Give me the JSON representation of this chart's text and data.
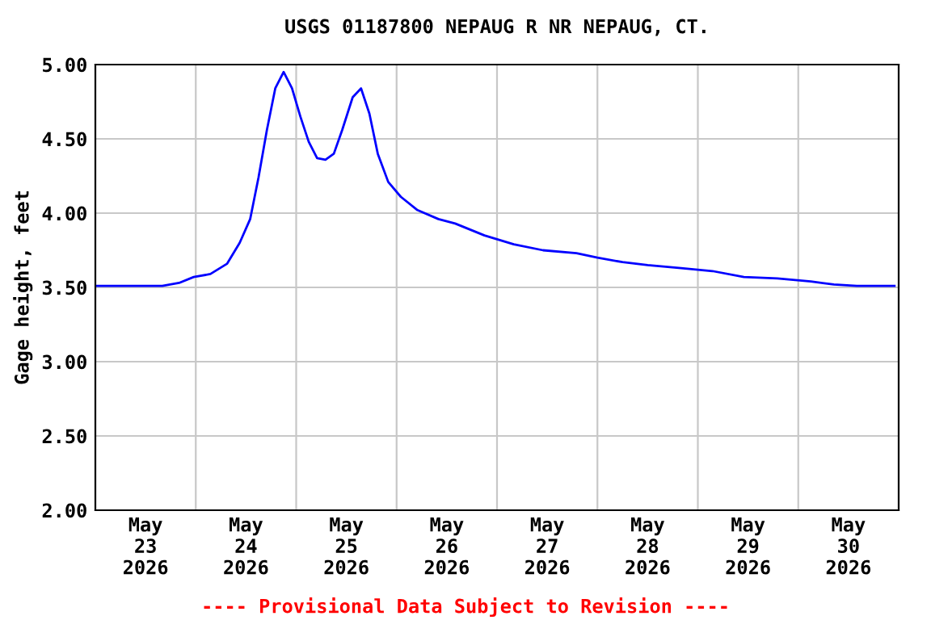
{
  "chart_data": {
    "type": "line",
    "title": "USGS 01187800 NEPAUG R NR NEPAUG, CT.",
    "ylabel": "Gage height, feet",
    "annotations": [
      "---- Provisional Data Subject to Revision ----"
    ],
    "x": [
      "2026-05-23T00:00",
      "2026-05-23T16:00",
      "2026-05-23T20:00",
      "2026-05-23T23:30",
      "2026-05-24T03:30",
      "2026-05-24T07:30",
      "2026-05-24T10:30",
      "2026-05-24T13:00",
      "2026-05-24T15:00",
      "2026-05-24T17:00",
      "2026-05-24T19:00",
      "2026-05-24T21:00",
      "2026-05-24T23:00",
      "2026-05-25T01:00",
      "2026-05-25T03:00",
      "2026-05-25T05:00",
      "2026-05-25T07:00",
      "2026-05-25T09:00",
      "2026-05-25T11:00",
      "2026-05-25T13:30",
      "2026-05-25T15:30",
      "2026-05-25T17:30",
      "2026-05-25T19:30",
      "2026-05-25T22:00",
      "2026-05-26T01:00",
      "2026-05-26T05:00",
      "2026-05-26T10:00",
      "2026-05-26T14:00",
      "2026-05-26T21:00",
      "2026-05-27T04:00",
      "2026-05-27T11:00",
      "2026-05-27T19:00",
      "2026-05-28T00:00",
      "2026-05-28T06:00",
      "2026-05-28T12:00",
      "2026-05-28T20:00",
      "2026-05-29T03:30",
      "2026-05-29T11:00",
      "2026-05-29T19:00",
      "2026-05-30T03:00",
      "2026-05-30T08:30",
      "2026-05-30T14:00",
      "2026-05-30T23:00"
    ],
    "series": [
      {
        "color": "#0000ff",
        "values": [
          3.51,
          3.51,
          3.53,
          3.57,
          3.59,
          3.66,
          3.8,
          3.96,
          4.24,
          4.56,
          4.84,
          4.95,
          4.84,
          4.65,
          4.48,
          4.37,
          4.36,
          4.4,
          4.56,
          4.78,
          4.84,
          4.67,
          4.4,
          4.21,
          4.11,
          4.02,
          3.96,
          3.93,
          3.85,
          3.79,
          3.75,
          3.73,
          3.7,
          3.67,
          3.65,
          3.63,
          3.61,
          3.57,
          3.56,
          3.54,
          3.52,
          3.51,
          3.51
        ]
      }
    ],
    "xlim": [
      "2026-05-23T00:00",
      "2026-05-31T00:00"
    ],
    "xticks": [
      {
        "value": "2026-05-23T12:00",
        "label": "May\n23\n2026"
      },
      {
        "value": "2026-05-24T00:00",
        "label": null
      },
      {
        "value": "2026-05-24T12:00",
        "label": "May\n24\n2026"
      },
      {
        "value": "2026-05-25T00:00",
        "label": null
      },
      {
        "value": "2026-05-25T12:00",
        "label": "May\n25\n2026"
      },
      {
        "value": "2026-05-26T00:00",
        "label": null
      },
      {
        "value": "2026-05-26T12:00",
        "label": "May\n26\n2026"
      },
      {
        "value": "2026-05-27T00:00",
        "label": null
      },
      {
        "value": "2026-05-27T12:00",
        "label": "May\n27\n2026"
      },
      {
        "value": "2026-05-28T00:00",
        "label": null
      },
      {
        "value": "2026-05-28T12:00",
        "label": "May\n28\n2026"
      },
      {
        "value": "2026-05-29T00:00",
        "label": null
      },
      {
        "value": "2026-05-29T12:00",
        "label": "May\n29\n2026"
      },
      {
        "value": "2026-05-30T00:00",
        "label": null
      },
      {
        "value": "2026-05-30T12:00",
        "label": "May\n30\n2026"
      }
    ],
    "ylim": [
      2,
      5
    ],
    "yticks": [
      {
        "value": 2,
        "label": "2.00"
      },
      {
        "value": 2.5,
        "label": "2.50"
      },
      {
        "value": 3,
        "label": "3.00"
      },
      {
        "value": 3.5,
        "label": "3.50"
      },
      {
        "value": 4,
        "label": "4.00"
      },
      {
        "value": 4.5,
        "label": "4.50"
      },
      {
        "value": 5,
        "label": "5.00"
      }
    ],
    "grid": true
  }
}
